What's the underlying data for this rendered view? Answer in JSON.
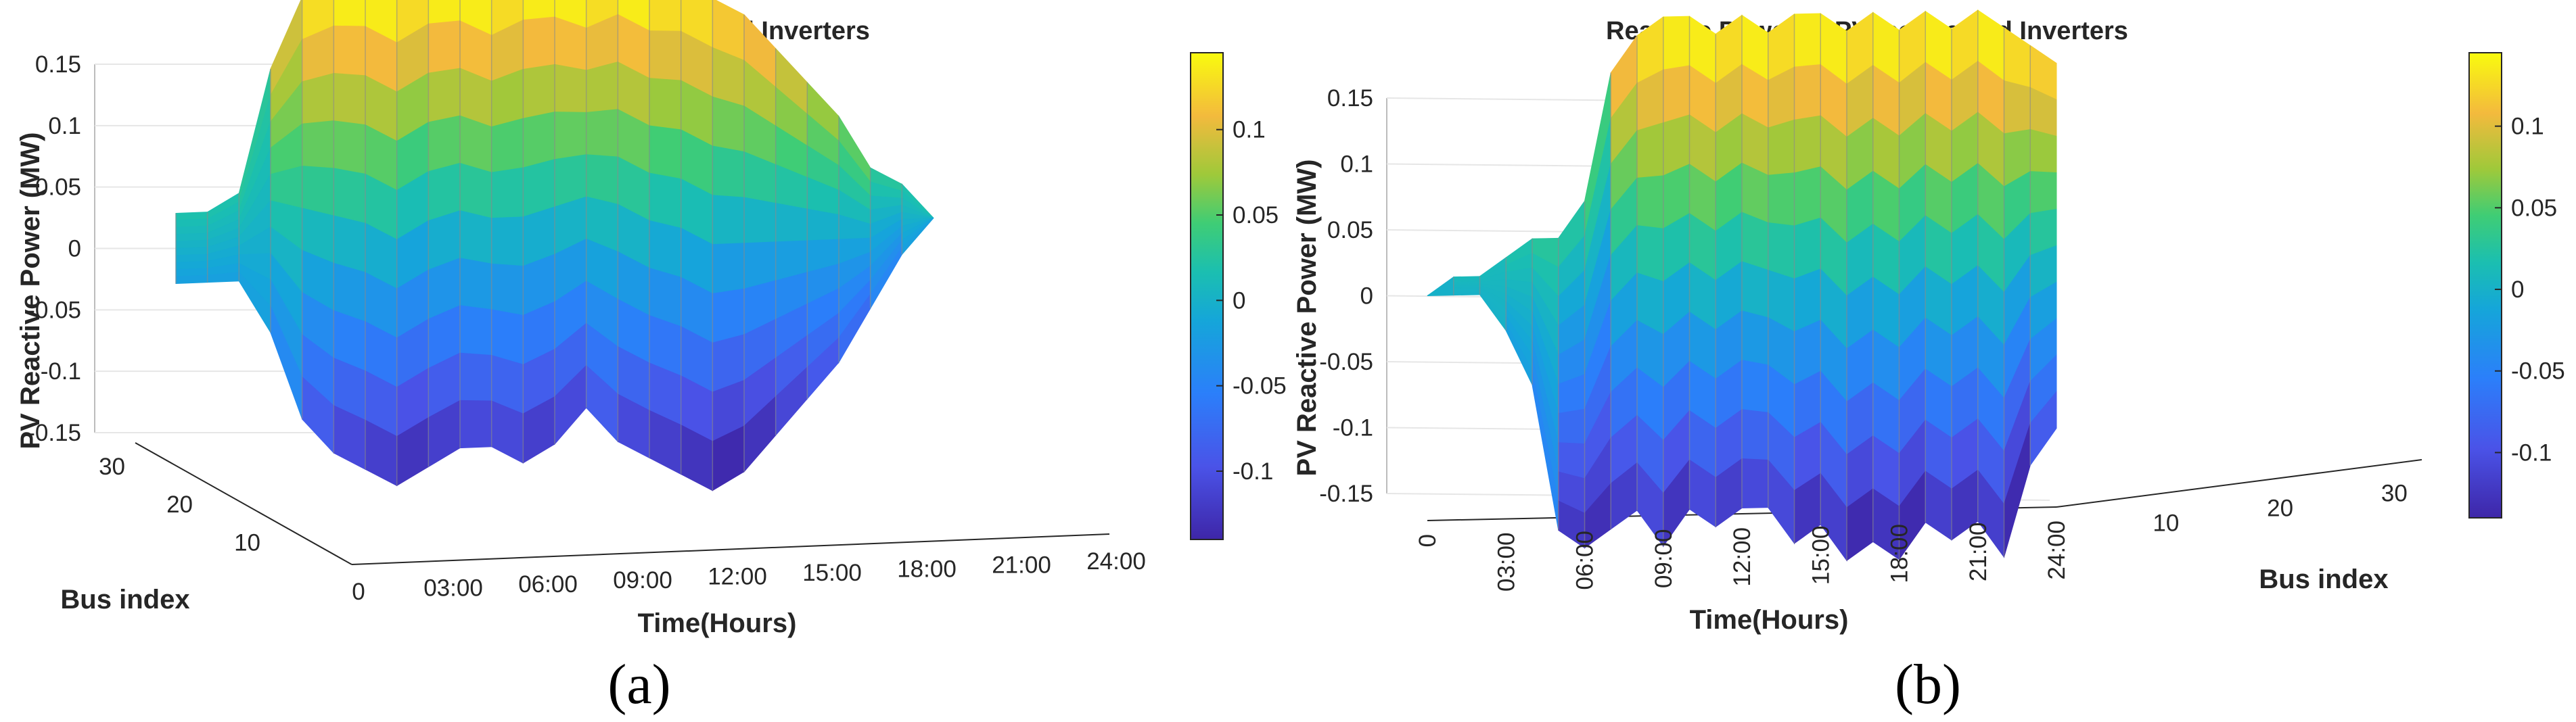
{
  "figure": {
    "panels": [
      {
        "id": "a",
        "label": "(a)",
        "chart_data": {
          "type": "surface3d",
          "title": "Reactive Power of PV−connected Inverters",
          "xlabel": "Time(Hours)",
          "ylabel": "Bus index",
          "zlabel": "PV Reactive Power (MW)",
          "x_ticks": [
            "0",
            "03:00",
            "06:00",
            "09:00",
            "12:00",
            "15:00",
            "18:00",
            "21:00",
            "24:00"
          ],
          "y_ticks": [
            "10",
            "20",
            "30"
          ],
          "z_ticks": [
            "-0.15",
            "-0.1",
            "-0.05",
            "0",
            "0.05",
            "0.1",
            "0.15"
          ],
          "xlim": [
            0,
            24
          ],
          "ylim": [
            1,
            33
          ],
          "zlim": [
            -0.15,
            0.15
          ],
          "view": "front-left",
          "colormap": "parula",
          "colorbar_ticks": [
            "-0.1",
            "-0.05",
            "0",
            "0.05",
            "0.1"
          ],
          "colorbar_range": [
            -0.14,
            0.145
          ],
          "grid": true,
          "time_profile": {
            "hours": [
              0,
              1,
              2,
              3,
              4,
              5,
              6,
              7,
              8,
              9,
              10,
              11,
              12,
              13,
              14,
              15,
              16,
              17,
              18,
              19,
              20,
              21,
              22,
              23,
              24
            ],
            "max_mw": [
              0.02,
              0.02,
              0.03,
              0.1,
              0.14,
              0.15,
              0.15,
              0.14,
              0.15,
              0.15,
              0.14,
              0.15,
              0.15,
              0.14,
              0.15,
              0.14,
              0.14,
              0.13,
              0.12,
              0.1,
              0.08,
              0.06,
              0.03,
              0.02,
              0.0
            ],
            "min_mw": [
              -0.02,
              -0.02,
              -0.02,
              -0.05,
              -0.1,
              -0.12,
              -0.13,
              -0.14,
              -0.13,
              -0.12,
              -0.12,
              -0.13,
              -0.12,
              -0.1,
              -0.12,
              -0.13,
              -0.14,
              -0.15,
              -0.14,
              -0.12,
              -0.1,
              -0.08,
              -0.05,
              -0.02,
              0.0
            ]
          }
        }
      },
      {
        "id": "b",
        "label": "(b)",
        "chart_data": {
          "type": "surface3d",
          "title": "Reactive Power of PV−connected Inverters",
          "xlabel": "Time(Hours)",
          "ylabel": "Bus index",
          "zlabel": "PV Reactive Power (MW)",
          "x_ticks": [
            "0",
            "03:00",
            "06:00",
            "09:00",
            "12:00",
            "15:00",
            "18:00",
            "21:00",
            "24:00"
          ],
          "y_ticks": [
            "10",
            "20",
            "30"
          ],
          "z_ticks": [
            "-0.15",
            "-0.1",
            "-0.05",
            "0",
            "0.05",
            "0.1",
            "0.15"
          ],
          "xlim": [
            0,
            24
          ],
          "ylim": [
            1,
            33
          ],
          "zlim": [
            -0.15,
            0.15
          ],
          "view": "front-right",
          "colormap": "parula",
          "colorbar_ticks": [
            "-0.1",
            "-0.05",
            "0",
            "0.05",
            "0.1"
          ],
          "colorbar_range": [
            -0.14,
            0.145
          ],
          "grid": true,
          "time_profile": {
            "hours": [
              0,
              1,
              2,
              3,
              4,
              5,
              6,
              7,
              8,
              9,
              10,
              11,
              12,
              13,
              14,
              15,
              16,
              17,
              18,
              19,
              20,
              21,
              22,
              23,
              24
            ],
            "max_mw": [
              0.0,
              0.01,
              0.01,
              0.02,
              0.03,
              0.03,
              0.05,
              0.12,
              0.14,
              0.15,
              0.15,
              0.14,
              0.15,
              0.14,
              0.15,
              0.15,
              0.14,
              0.15,
              0.14,
              0.15,
              0.14,
              0.15,
              0.14,
              0.13,
              0.12
            ],
            "min_mw": [
              0.0,
              0.0,
              0.0,
              -0.02,
              -0.05,
              -0.13,
              -0.14,
              -0.13,
              -0.12,
              -0.14,
              -0.12,
              -0.13,
              -0.12,
              -0.12,
              -0.14,
              -0.13,
              -0.15,
              -0.14,
              -0.15,
              -0.13,
              -0.14,
              -0.13,
              -0.15,
              -0.1,
              -0.08
            ]
          }
        }
      }
    ]
  }
}
